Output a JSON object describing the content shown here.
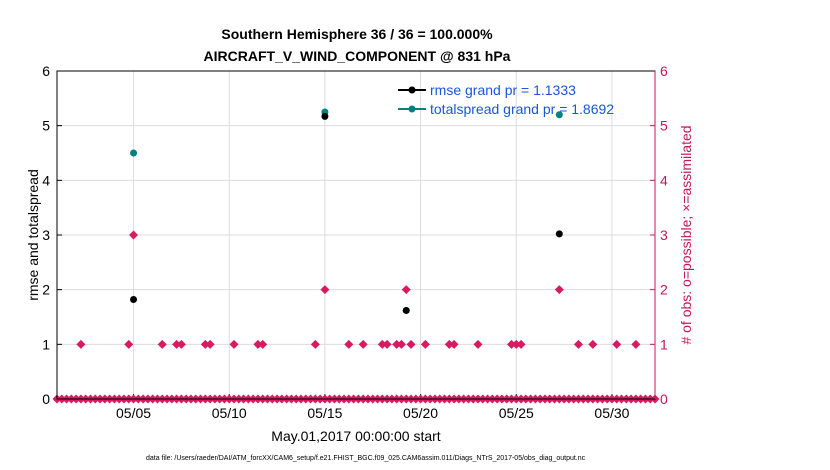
{
  "chart_data": {
    "type": "scatter",
    "title": "Southern Hemisphere 36 / 36 = 100.000%",
    "subtitle": "AIRCRAFT_V_WIND_COMPONENT @ 831 hPa",
    "xlabel": "May.01,2017 00:00:00 start",
    "ylabel_left": "rmse and totalspread",
    "ylabel_right": "# of obs: o=possible; ×=assimilated",
    "footnote": "data file: /Users/raeder/DAI/ATM_forcXX/CAM6_setup/f.e21.FHIST_BGC.f09_025.CAM6assim.011/Diags_NTrS_2017-05/obs_diag_output.nc",
    "x_ticks": [
      {
        "day": 5,
        "label": "05/05"
      },
      {
        "day": 10,
        "label": "05/10"
      },
      {
        "day": 15,
        "label": "05/15"
      },
      {
        "day": 20,
        "label": "05/20"
      },
      {
        "day": 25,
        "label": "05/25"
      },
      {
        "day": 30,
        "label": "05/30"
      }
    ],
    "xlim": [
      1,
      32.25
    ],
    "ylim_left": [
      0,
      6
    ],
    "ylim_right": [
      0,
      6
    ],
    "y_ticks_left": [
      "0",
      "1",
      "2",
      "3",
      "4",
      "5",
      "6"
    ],
    "y_ticks_right": [
      "0",
      "1",
      "2",
      "3",
      "4",
      "5",
      "6"
    ],
    "grid": true,
    "legend_position": "top-right",
    "colors": {
      "rmse": "#000000",
      "totalspread": "#008080",
      "obs": "#d81b60",
      "legend_text": "#1a56db",
      "right_axis": "#c2185b"
    },
    "series": [
      {
        "name": "rmse grand pr = 1.1333",
        "axis": "left",
        "x": [
          5.0,
          15.0,
          19.25,
          27.25
        ],
        "y": [
          1.82,
          5.17,
          1.62,
          3.02
        ]
      },
      {
        "name": "totalspread grand pr = 1.8692",
        "axis": "left",
        "x": [
          5.0,
          15.0,
          19.25,
          27.25
        ],
        "y": [
          4.5,
          5.25,
          1.62,
          5.2
        ]
      },
      {
        "name": "obs possible / assimilated",
        "axis": "right",
        "x": [
          2.25,
          4.75,
          5.0,
          6.5,
          7.25,
          7.5,
          8.75,
          9.0,
          10.25,
          11.5,
          11.75,
          14.5,
          15.0,
          16.25,
          17.0,
          18.0,
          18.25,
          18.75,
          19.0,
          19.25,
          19.5,
          20.25,
          21.5,
          21.75,
          23.0,
          24.75,
          25.0,
          25.25,
          27.25,
          28.25,
          29.0,
          30.25,
          31.25
        ],
        "y": [
          1,
          1,
          3,
          1,
          1,
          1,
          1,
          1,
          1,
          1,
          1,
          1,
          2,
          1,
          1,
          1,
          1,
          1,
          1,
          2,
          1,
          1,
          1,
          1,
          1,
          1,
          1,
          1,
          2,
          1,
          1,
          1,
          1
        ]
      }
    ]
  }
}
